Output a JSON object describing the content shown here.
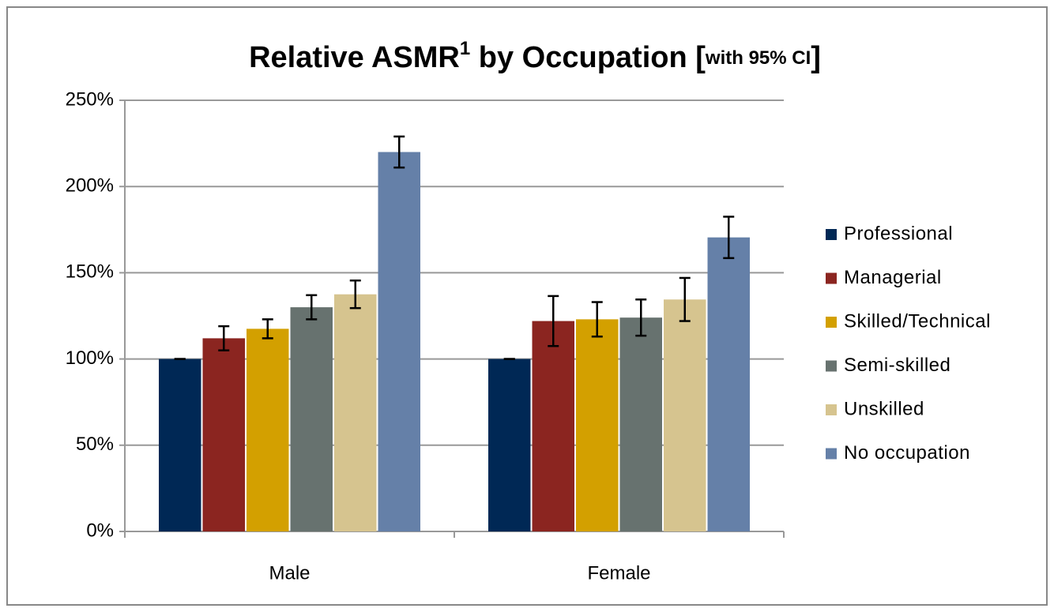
{
  "chart_data": {
    "type": "bar",
    "title_parts": [
      "Relative ASMR",
      "1",
      " by Occupation [",
      "with 95% CI",
      "]"
    ],
    "categories": [
      "Male",
      "Female"
    ],
    "series": [
      {
        "name": "Professional",
        "color": "#002855",
        "values": [
          100,
          100
        ],
        "errors": [
          0,
          0
        ]
      },
      {
        "name": "Managerial",
        "color": "#8b2520",
        "values": [
          112,
          122
        ],
        "errors": [
          7,
          14.5
        ]
      },
      {
        "name": "Skilled/Technical",
        "color": "#d3a000",
        "values": [
          117.5,
          123
        ],
        "errors": [
          5.5,
          10
        ]
      },
      {
        "name": "Semi-skilled",
        "color": "#67726f",
        "values": [
          130,
          124
        ],
        "errors": [
          7,
          10.5
        ]
      },
      {
        "name": "Unskilled",
        "color": "#d6c48f",
        "values": [
          137.5,
          134.5
        ],
        "errors": [
          8,
          12.5
        ]
      },
      {
        "name": "No occupation",
        "color": "#6580a8",
        "values": [
          220,
          170.5
        ],
        "errors": [
          9,
          12
        ]
      }
    ],
    "ylim": [
      0,
      250
    ],
    "yticks": [
      {
        "value": 0,
        "label": "0%"
      },
      {
        "value": 50,
        "label": "50%"
      },
      {
        "value": 100,
        "label": "100%"
      },
      {
        "value": 150,
        "label": "150%"
      },
      {
        "value": 200,
        "label": "200%"
      },
      {
        "value": 250,
        "label": "250%"
      }
    ],
    "grid": true,
    "legend": "right"
  }
}
